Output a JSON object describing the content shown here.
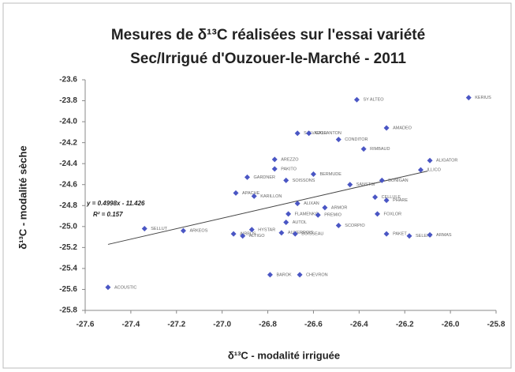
{
  "chart_data": {
    "type": "scatter",
    "title": [
      "Mesures de δ¹³C  réalisées sur l'essai variété",
      "Sec/Irrigué d'Ouzouer-le-Marché - 2011"
    ],
    "xlabel": "δ¹³C - modalité irriguée",
    "ylabel": "δ¹³C - modalité sèche",
    "color": "#4a56c4",
    "x": [
      -26.41,
      -25.92,
      -26.28,
      -26.67,
      -26.62,
      -26.49,
      -26.38,
      -26.77,
      -26.09,
      -26.77,
      -26.13,
      -26.6,
      -26.89,
      -26.72,
      -26.3,
      -26.44,
      -26.94,
      -26.86,
      -26.33,
      -26.28,
      -26.67,
      -26.55,
      -26.32,
      -26.71,
      -26.58,
      -26.72,
      -26.49,
      -27.34,
      -27.17,
      -26.87,
      -26.95,
      -26.91,
      -26.74,
      -26.68,
      -26.28,
      -26.18,
      -26.09,
      -26.79,
      -26.66,
      -27.5
    ],
    "values": [
      -23.79,
      -23.77,
      -24.06,
      -24.11,
      -24.11,
      -24.17,
      -24.26,
      -24.36,
      -24.37,
      -24.45,
      -24.46,
      -24.5,
      -24.53,
      -24.56,
      -24.56,
      -24.6,
      -24.68,
      -24.71,
      -24.72,
      -24.75,
      -24.78,
      -24.82,
      -24.88,
      -24.88,
      -24.89,
      -24.96,
      -24.99,
      -25.02,
      -25.04,
      -25.03,
      -25.07,
      -25.09,
      -25.06,
      -25.07,
      -25.07,
      -25.09,
      -25.08,
      -25.46,
      -25.46,
      -25.58
    ],
    "point_labels": [
      "SY ALTEO",
      "KERIUS",
      "AMADEO",
      "SALVADOR",
      "GALLANTON",
      "CONDITOR",
      "RIMBAUD",
      "AREZZO",
      "ALIGATOR",
      "PAKITO",
      "ILLICO",
      "BERMUDE",
      "GARDNER",
      "SOISSONS",
      "BONIGAN",
      "SANSTSI",
      "APACHE",
      "KARILLON",
      "CELLULE",
      "PHARE",
      "ALIXAN",
      "ARMOR",
      "FOXLOR",
      "FLAMENKO",
      "PREMIO",
      "AUTOL",
      "SCORPIO",
      "SELLUT",
      "ARKEOS",
      "HYSTAR",
      "AIRBUS",
      "ALTIGO",
      "AUXERROIS",
      "BOISSEAU",
      "PAKET",
      "SELEKT",
      "ARMAS",
      "BAROK",
      "CHEVRON",
      "ACOUSTIC"
    ],
    "trendline": {
      "slope": 0.4998,
      "intercept": -11.426,
      "xrange": [
        -27.5,
        -26.1
      ],
      "equation": "y = 0.4998x - 11.426",
      "r2": "R² = 0.157"
    },
    "xlim": [
      -27.6,
      -25.8
    ],
    "xticks": [
      -27.6,
      -27.4,
      -27.2,
      {
        "value": -27,
        "label": "-27.0"
      },
      -26.8,
      -26.6,
      -26.4,
      -26.2,
      {
        "value": -26,
        "label": "-26.0"
      },
      -25.8
    ],
    "ylim": [
      -25.8,
      -23.6
    ],
    "yticks": [
      -23.6,
      -23.8,
      {
        "value": -24,
        "label": "-24.0"
      },
      -24.2,
      -24.4,
      -24.6,
      -24.8,
      {
        "value": -25,
        "label": "-25.0"
      },
      -25.2,
      -25.4,
      -25.6,
      -25.8
    ],
    "grid": false
  }
}
